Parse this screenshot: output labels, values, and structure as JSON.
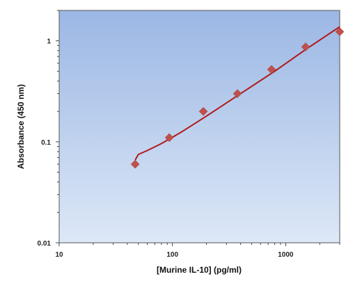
{
  "chart_data": {
    "type": "scatter",
    "xlabel": "[Murine IL-10] (pg/ml)",
    "ylabel": "Absorbance (450 nm)",
    "xscale": "log",
    "yscale": "log",
    "xlim": [
      10,
      3000
    ],
    "ylim": [
      0.01,
      2
    ],
    "x_ticks": [
      10,
      100,
      1000
    ],
    "x_tick_labels": [
      "10",
      "100",
      "1000"
    ],
    "y_ticks": [
      0.01,
      0.1,
      1
    ],
    "y_tick_labels": [
      "0.01",
      "0.1",
      "1"
    ],
    "grid": false,
    "series": [
      {
        "kind": "points",
        "color": "#c0504d",
        "marker": "diamond",
        "x": [
          46.9,
          93.75,
          187.5,
          375,
          750,
          1500,
          3000
        ],
        "y": [
          0.06,
          0.11,
          0.2,
          0.3,
          0.52,
          0.87,
          1.23
        ]
      },
      {
        "kind": "fit",
        "color": "#b01818",
        "x": [
          46.9,
          50,
          60,
          80,
          120,
          200,
          400,
          800,
          1500,
          3000
        ],
        "y": [
          0.066,
          0.075,
          0.082,
          0.096,
          0.125,
          0.18,
          0.3,
          0.5,
          0.82,
          1.38
        ]
      }
    ]
  }
}
